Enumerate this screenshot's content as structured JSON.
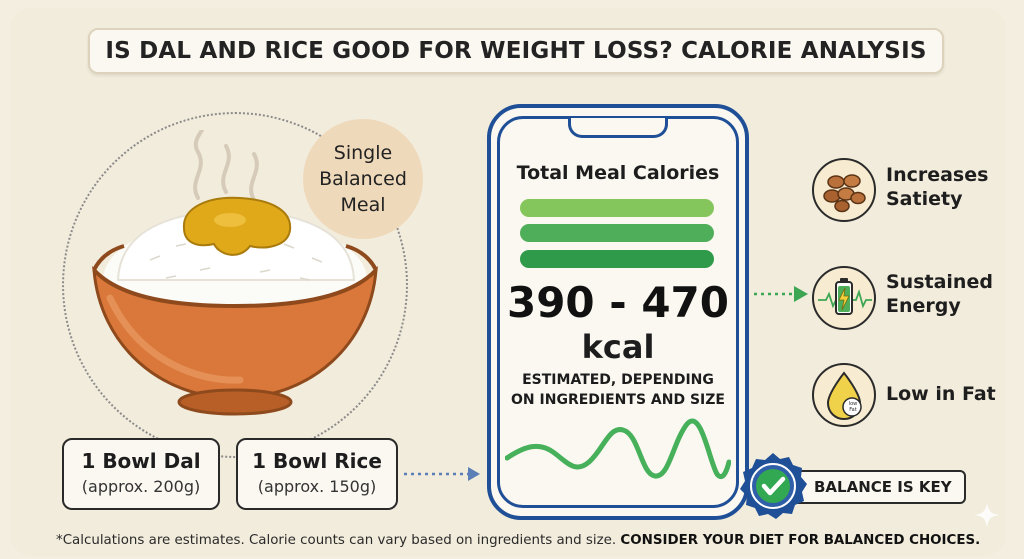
{
  "title": "IS DAL AND RICE GOOD FOR WEIGHT LOSS? CALORIE ANALYSIS",
  "badge": "Single\nBalanced\nMeal",
  "ingredients": [
    {
      "name": "1 Bowl Dal",
      "amount": "(approx. 200g)"
    },
    {
      "name": "1 Bowl Rice",
      "amount": "(approx. 150g)"
    }
  ],
  "calories": {
    "title": "Total Meal Calories",
    "range": "390 - 470",
    "unit": "kcal",
    "note": "ESTIMATED, DEPENDING\nON INGREDIENTS AND SIZE"
  },
  "benefits": [
    {
      "label": "Increases\nSatiety",
      "icon": "legumes-icon"
    },
    {
      "label": "Sustained\nEnergy",
      "icon": "battery-icon"
    },
    {
      "label": "Low in Fat",
      "icon": "oil-drop-icon",
      "icon_text": "low\nFat"
    }
  ],
  "balance": "BALANCE IS KEY",
  "footnote": {
    "normal": "*Calculations are estimates. Calorie counts can vary based on ingredients and size. ",
    "bold": "CONSIDER YOUR DIET FOR BALANCED CHOICES."
  },
  "colors": {
    "background": "#f4eee0",
    "phone_border": "#1f4f96",
    "bar_light": "#85c65c",
    "bar_mid": "#4fae59",
    "bar_dark": "#2f9a4a",
    "bowl": "#d9783a",
    "dal": "#e0a91a",
    "seal": "#1f4f96",
    "check": "#33a852"
  }
}
